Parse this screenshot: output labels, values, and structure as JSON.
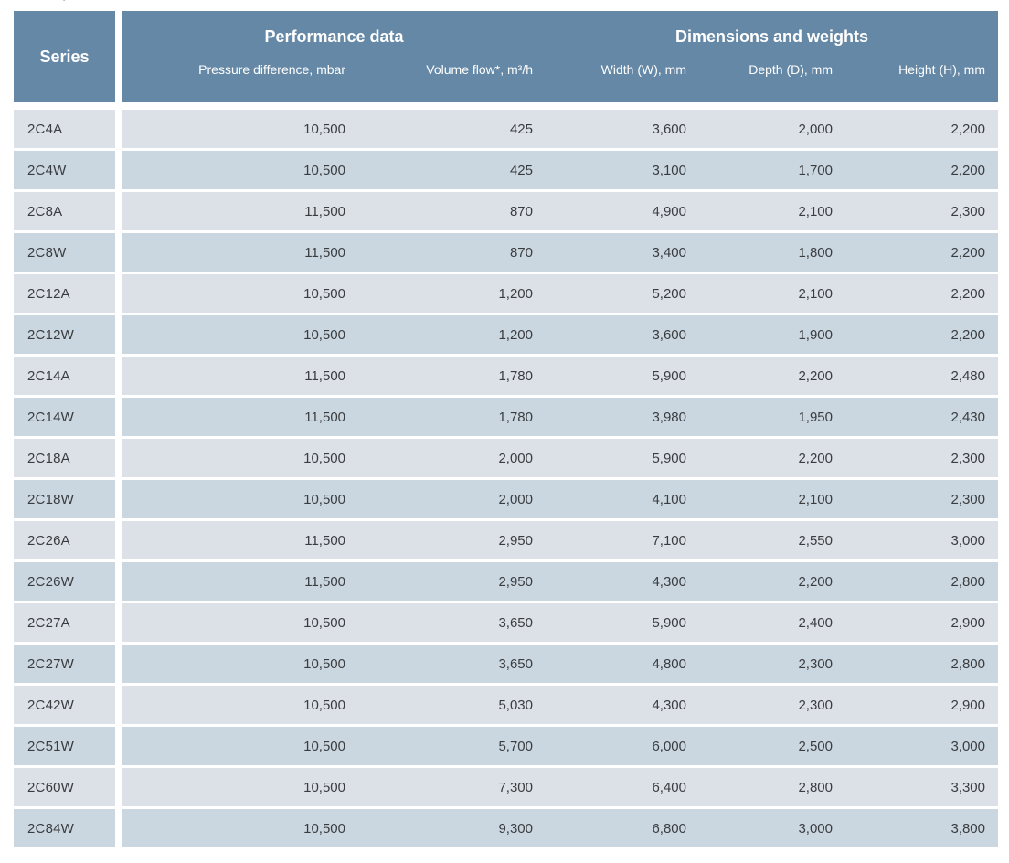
{
  "page": {
    "artifact_mark": "'"
  },
  "colors": {
    "header_bg": "#6488a5",
    "row_light": "#dce1e7",
    "row_dark": "#cbd7e0",
    "cell_text": "#3a3d40",
    "header_text": "#ffffff"
  },
  "table": {
    "header": {
      "series_label": "Series",
      "groups": [
        {
          "label": "Performance data",
          "columns": [
            "Pressure difference, mbar",
            "Volume flow*, m³/h"
          ]
        },
        {
          "label": "Dimensions and weights",
          "columns": [
            "Width (W), mm",
            "Depth (D), mm",
            "Height (H), mm"
          ]
        }
      ]
    },
    "rows": [
      {
        "series": "2C4A",
        "values": [
          "10,500",
          "425",
          "3,600",
          "2,000",
          "2,200"
        ]
      },
      {
        "series": "2C4W",
        "values": [
          "10,500",
          "425",
          "3,100",
          "1,700",
          "2,200"
        ]
      },
      {
        "series": "2C8A",
        "values": [
          "11,500",
          "870",
          "4,900",
          "2,100",
          "2,300"
        ]
      },
      {
        "series": "2C8W",
        "values": [
          "11,500",
          "870",
          "3,400",
          "1,800",
          "2,200"
        ]
      },
      {
        "series": "2C12A",
        "values": [
          "10,500",
          "1,200",
          "5,200",
          "2,100",
          "2,200"
        ]
      },
      {
        "series": "2C12W",
        "values": [
          "10,500",
          "1,200",
          "3,600",
          "1,900",
          "2,200"
        ]
      },
      {
        "series": "2C14A",
        "values": [
          "11,500",
          "1,780",
          "5,900",
          "2,200",
          "2,480"
        ]
      },
      {
        "series": "2C14W",
        "values": [
          "11,500",
          "1,780",
          "3,980",
          "1,950",
          "2,430"
        ]
      },
      {
        "series": "2C18A",
        "values": [
          "10,500",
          "2,000",
          "5,900",
          "2,200",
          "2,300"
        ]
      },
      {
        "series": "2C18W",
        "values": [
          "10,500",
          "2,000",
          "4,100",
          "2,100",
          "2,300"
        ]
      },
      {
        "series": "2C26A",
        "values": [
          "11,500",
          "2,950",
          "7,100",
          "2,550",
          "3,000"
        ]
      },
      {
        "series": "2C26W",
        "values": [
          "11,500",
          "2,950",
          "4,300",
          "2,200",
          "2,800"
        ]
      },
      {
        "series": "2C27A",
        "values": [
          "10,500",
          "3,650",
          "5,900",
          "2,400",
          "2,900"
        ]
      },
      {
        "series": "2C27W",
        "values": [
          "10,500",
          "3,650",
          "4,800",
          "2,300",
          "2,800"
        ]
      },
      {
        "series": "2C42W",
        "values": [
          "10,500",
          "5,030",
          "4,300",
          "2,300",
          "2,900"
        ]
      },
      {
        "series": "2C51W",
        "values": [
          "10,500",
          "5,700",
          "6,000",
          "2,500",
          "3,000"
        ]
      },
      {
        "series": "2C60W",
        "values": [
          "10,500",
          "7,300",
          "6,400",
          "2,800",
          "3,300"
        ]
      },
      {
        "series": "2C84W",
        "values": [
          "10,500",
          "9,300",
          "6,800",
          "3,000",
          "3,800"
        ]
      }
    ]
  }
}
